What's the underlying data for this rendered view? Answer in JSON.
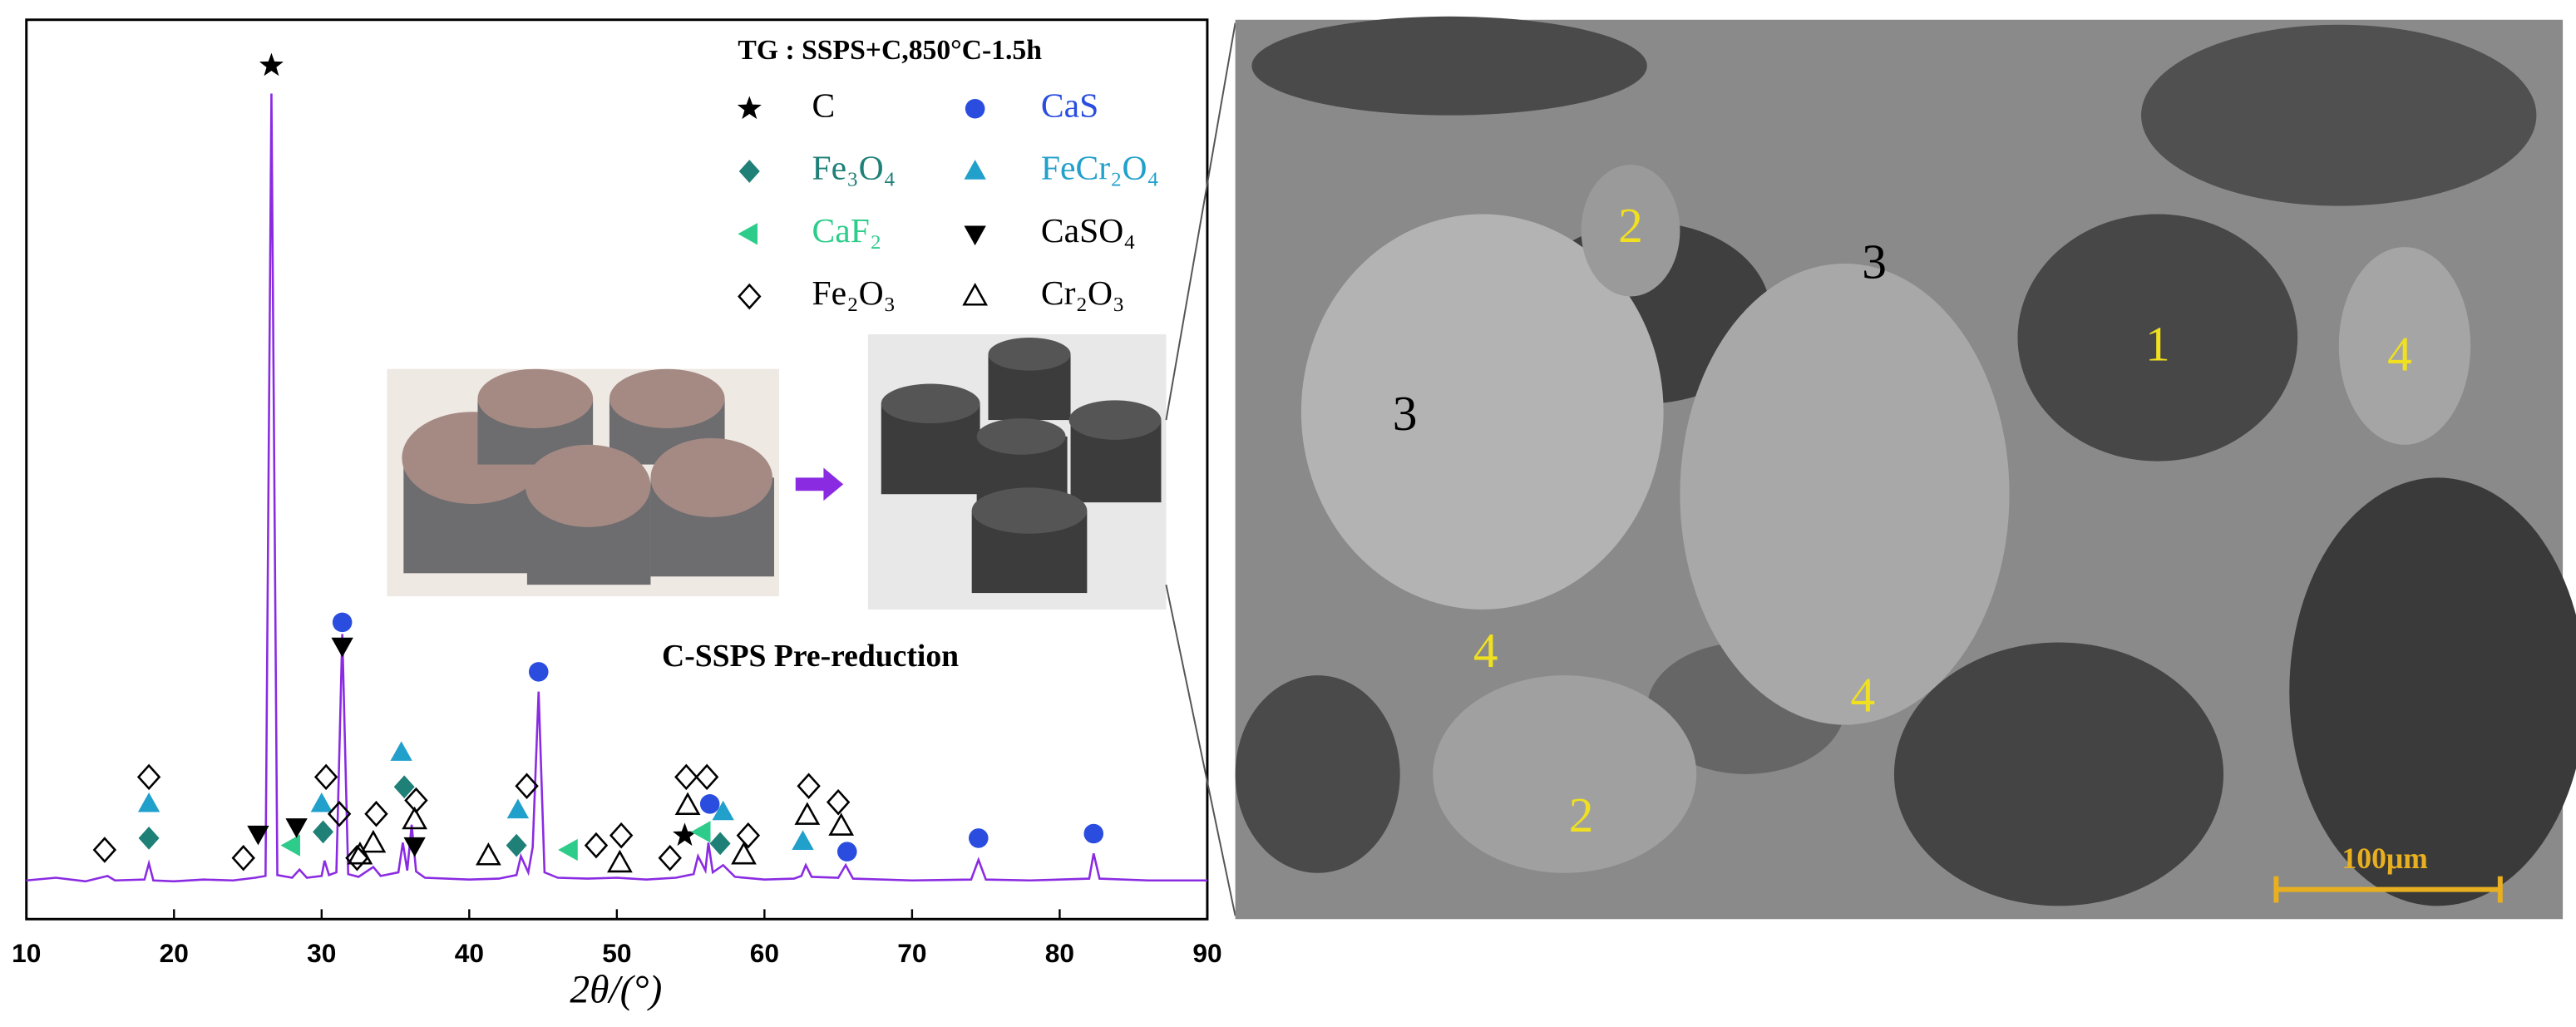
{
  "chart_data": {
    "type": "line",
    "title": "TG : SSPS+C,850°C-1.5h",
    "xlabel": "2θ/(°)",
    "color": "#8a2be2",
    "xlim": [
      10,
      90
    ],
    "xticks": [
      10,
      20,
      30,
      40,
      50,
      60,
      70,
      80,
      90
    ],
    "ylim": [
      0,
      100
    ],
    "x": [
      10,
      12,
      14,
      15.5,
      16,
      18,
      18.3,
      18.6,
      20,
      22,
      24,
      25.5,
      26.2,
      26.6,
      27.0,
      28,
      28.5,
      29,
      30,
      30.2,
      30.5,
      31.0,
      31.4,
      31.8,
      32.5,
      33.5,
      34,
      35.2,
      35.5,
      35.8,
      36.1,
      36.4,
      37,
      40,
      42,
      43.2,
      43.5,
      44,
      44.3,
      44.7,
      45.1,
      46,
      48,
      50,
      52,
      54,
      55.2,
      55.5,
      56,
      56.2,
      56.5,
      57.2,
      58,
      60,
      62,
      62.5,
      62.8,
      63.2,
      65,
      65.5,
      66,
      70,
      74,
      74.5,
      75,
      78,
      82,
      82.3,
      82.7,
      86,
      90
    ],
    "values": [
      4.3,
      4.6,
      4.2,
      4.8,
      4.3,
      4.4,
      6.2,
      4.3,
      4.2,
      4.4,
      4.3,
      4.6,
      4.8,
      91.8,
      4.9,
      4.6,
      5.5,
      4.6,
      4.8,
      6.5,
      4.9,
      5.2,
      31.7,
      5.0,
      4.7,
      5.8,
      4.8,
      5.2,
      8.5,
      5.4,
      10.5,
      5.3,
      4.6,
      4.4,
      4.5,
      4.9,
      7.0,
      5.2,
      8.0,
      25.3,
      5.2,
      4.6,
      4.5,
      4.6,
      4.4,
      4.6,
      5.0,
      7.0,
      5.4,
      8.5,
      5.2,
      6.0,
      4.7,
      4.4,
      4.5,
      4.8,
      6.0,
      4.7,
      4.6,
      6.0,
      4.5,
      4.3,
      4.4,
      6.6,
      4.4,
      4.3,
      4.5,
      7.3,
      4.5,
      4.3,
      4.3
    ],
    "markers": [
      {
        "name": "C",
        "symbol": "star",
        "color": "#000000",
        "x": [
          26.6,
          54.6
        ],
        "y": [
          94.9,
          9.3
        ]
      },
      {
        "name": "CaS",
        "symbol": "circle",
        "color": "#2a4de0",
        "x": [
          31.4,
          44.7,
          56.3,
          65.6,
          74.5,
          82.3
        ],
        "y": [
          33,
          27.5,
          12.8,
          7.5,
          9,
          9.5
        ]
      },
      {
        "name": "Fe₃O₄",
        "symbol": "diamond",
        "color": "#1f8078",
        "x": [
          18.3,
          30.1,
          35.6,
          43.2,
          57.0
        ],
        "y": [
          9,
          9.7,
          14.7,
          8.2,
          8.4
        ]
      },
      {
        "name": "FeCr₂O₄",
        "symbol": "triangle-up",
        "color": "#22a0cc",
        "x": [
          18.3,
          30.0,
          35.4,
          43.3,
          57.2,
          62.6
        ],
        "y": [
          12.8,
          12.8,
          18.5,
          12.1,
          11.9,
          8.6
        ]
      },
      {
        "name": "CaF₂",
        "symbol": "triangle-left",
        "color": "#2ecc8a",
        "x": [
          28.0,
          46.8,
          55.8
        ],
        "y": [
          8.2,
          7.7,
          9.7
        ]
      },
      {
        "name": "CaSO₄",
        "symbol": "triangle-down",
        "color": "#000000",
        "x": [
          25.7,
          28.3,
          31.4,
          36.3
        ],
        "y": [
          9.5,
          10.3,
          30.4,
          8.2
        ]
      },
      {
        "name": "Fe₂O₃",
        "symbol": "diamond-open",
        "color": "#000000",
        "x": [
          15.3,
          18.3,
          24.7,
          30.3,
          31.2,
          32.4,
          33.7,
          36.4,
          43.9,
          48.6,
          50.3,
          53.6,
          54.7,
          56.1,
          58.9,
          63.0,
          65.0
        ],
        "y": [
          7.7,
          15.8,
          6.8,
          15.8,
          11.7,
          6.8,
          11.7,
          13.2,
          14.8,
          8.2,
          9.3,
          6.8,
          15.8,
          15.8,
          9.3,
          14.8,
          13
        ]
      },
      {
        "name": "Cr₂O₃",
        "symbol": "triangle-open",
        "color": "#000000",
        "x": [
          32.6,
          33.5,
          36.3,
          41.3,
          50.2,
          54.8,
          58.6,
          62.9,
          65.2
        ],
        "y": [
          7.1,
          8.4,
          11,
          7,
          6.2,
          12.6,
          7.1,
          11.5,
          10.3
        ]
      }
    ]
  },
  "photo": {
    "caption": "C-SSPS Pre-reduction"
  },
  "sem": {
    "labels": [
      "1",
      "2",
      "2",
      "3",
      "3",
      "4",
      "4",
      "4"
    ],
    "scale_bar": "100μm"
  }
}
